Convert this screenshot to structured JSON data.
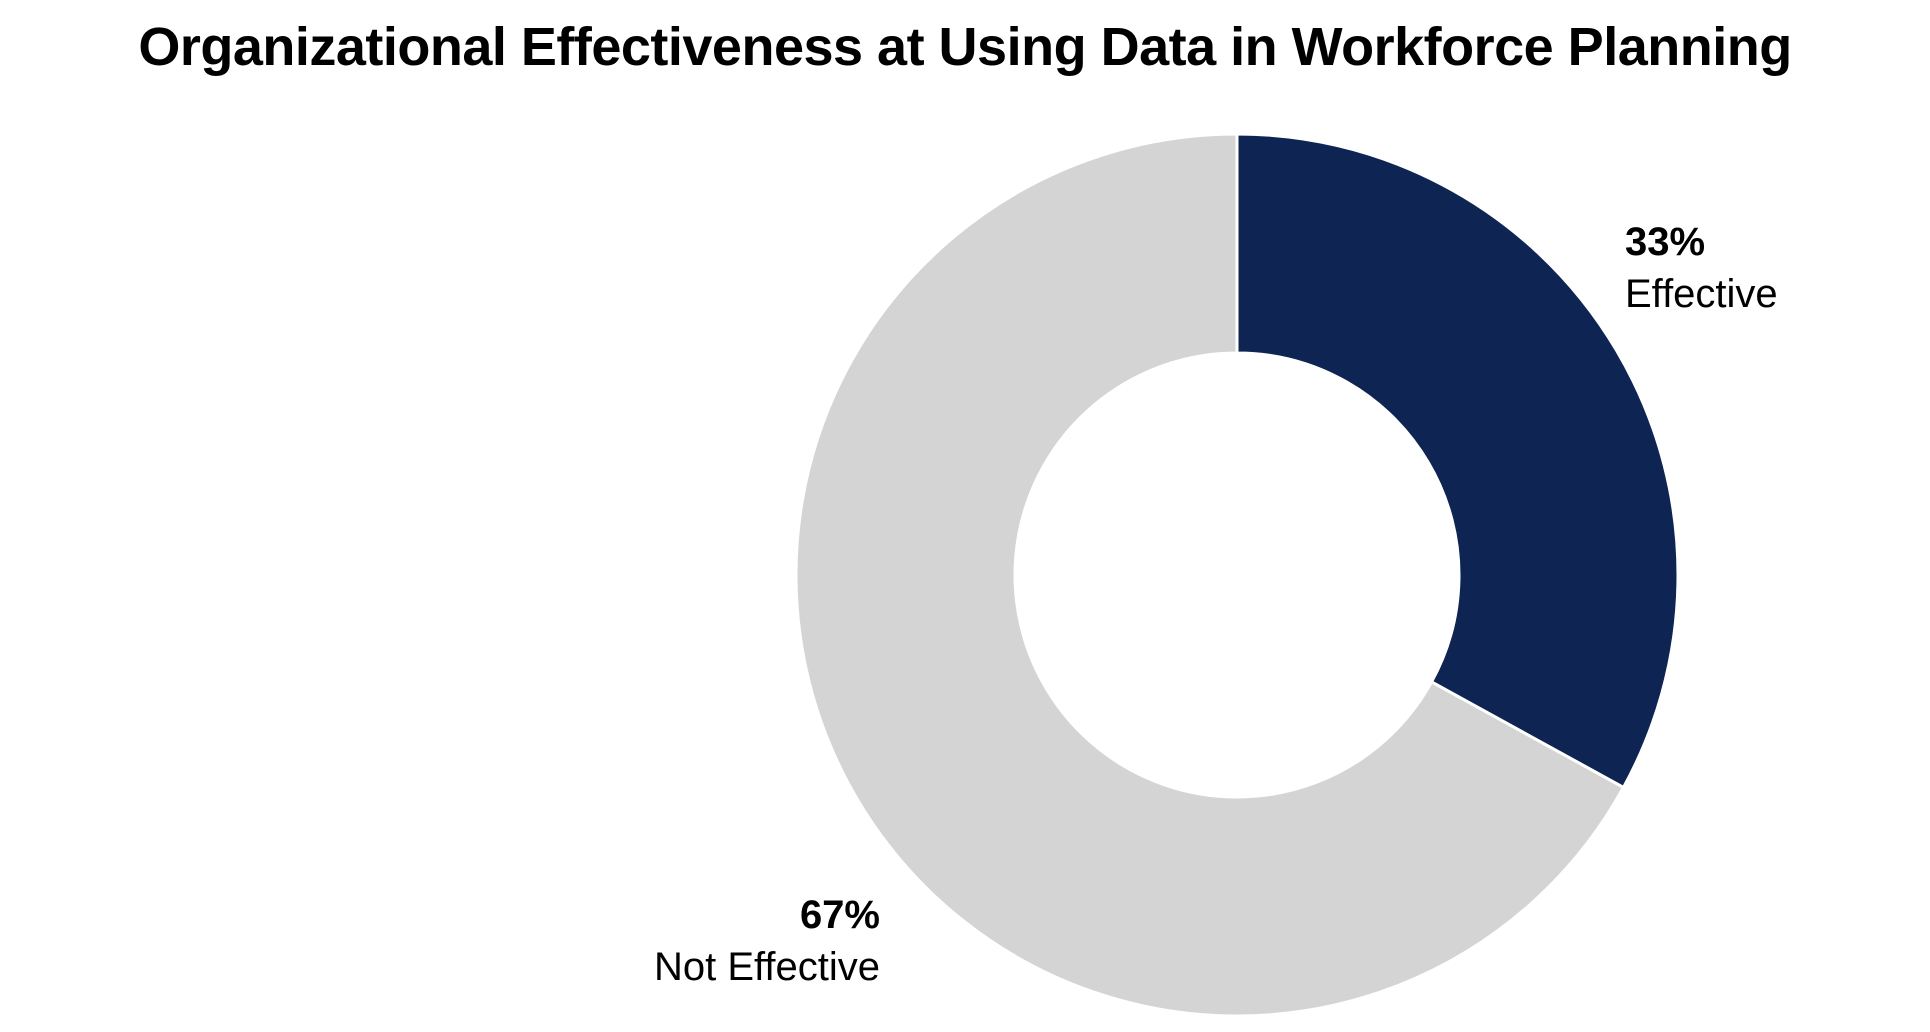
{
  "chart_data": {
    "type": "pie",
    "variant": "donut",
    "title": "Organizational Effectiveness at Using Data in Workforce Planning",
    "categories": [
      "Effective",
      "Not Effective"
    ],
    "values": [
      33,
      67
    ],
    "value_labels": [
      "33%",
      "67%"
    ],
    "colors": [
      "#0e2452",
      "#d4d4d4"
    ],
    "start_angle": "12 o'clock",
    "direction": "clockwise",
    "legend": "none"
  }
}
